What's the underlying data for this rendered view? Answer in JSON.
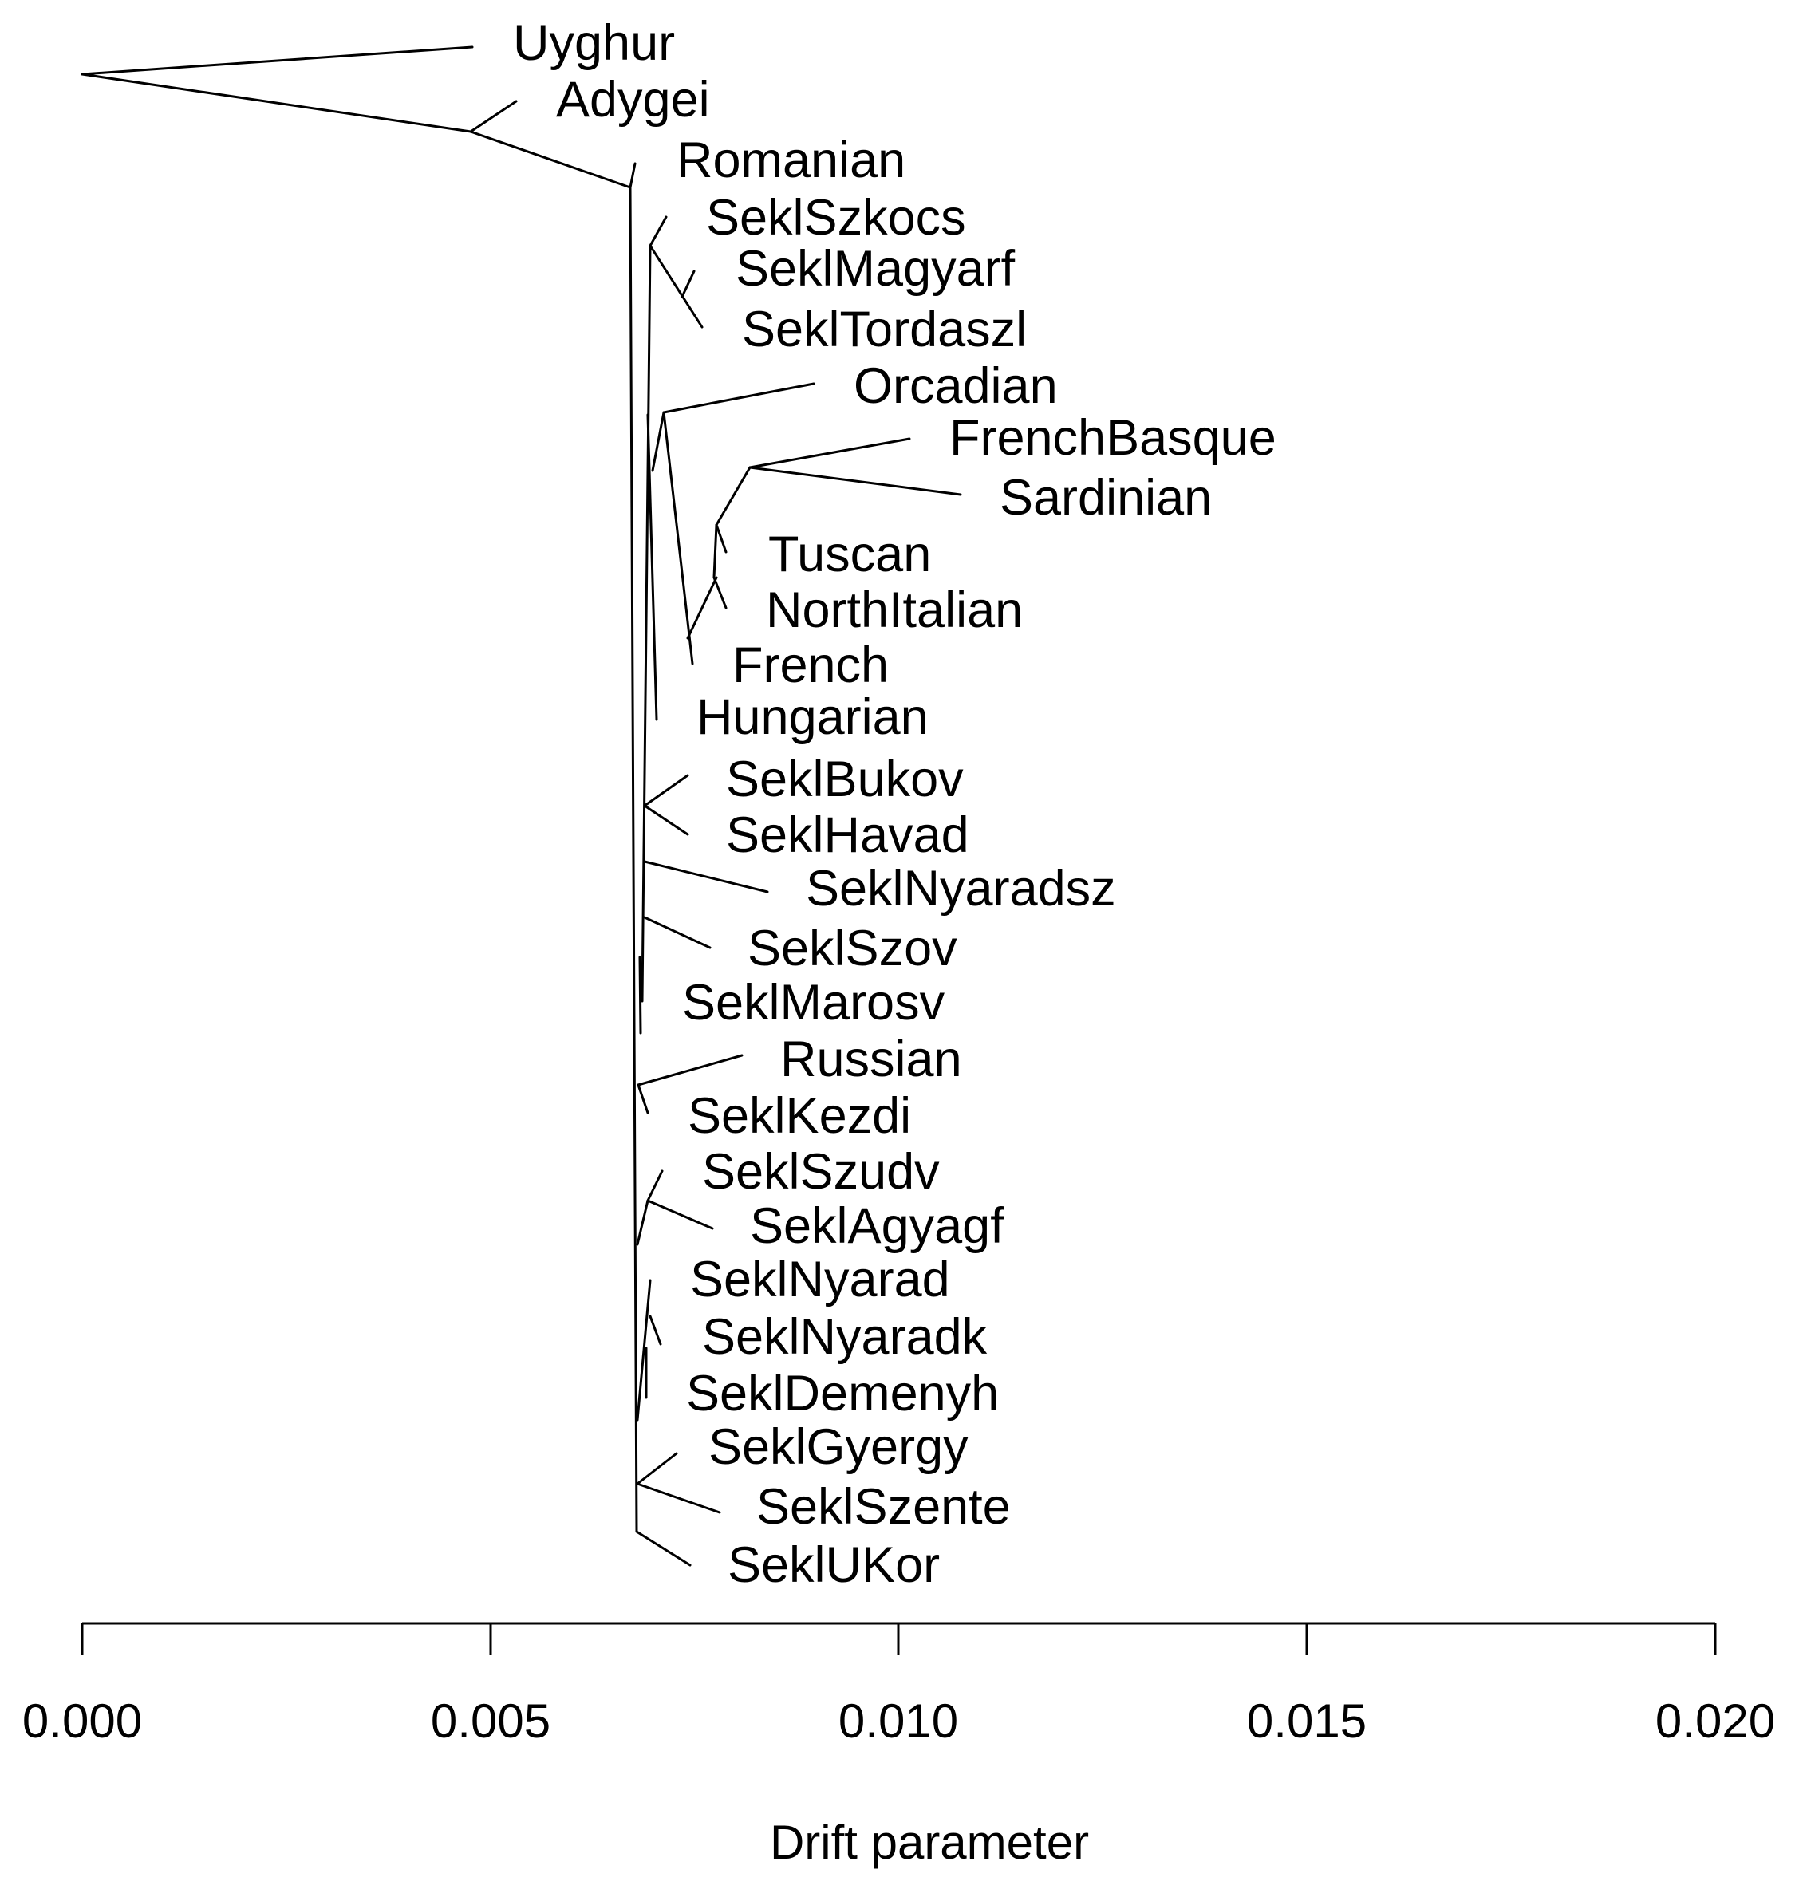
{
  "tree": {
    "leaves": [
      {
        "name": "Uyghur"
      },
      {
        "name": "Adygei"
      },
      {
        "name": "Romanian"
      },
      {
        "name": "SeklSzkocs"
      },
      {
        "name": "SeklMagyarf"
      },
      {
        "name": "SeklTordaszl"
      },
      {
        "name": "Orcadian"
      },
      {
        "name": "FrenchBasque"
      },
      {
        "name": "Sardinian"
      },
      {
        "name": "Tuscan"
      },
      {
        "name": "NorthItalian"
      },
      {
        "name": "French"
      },
      {
        "name": "Hungarian"
      },
      {
        "name": "SeklBukov"
      },
      {
        "name": "SeklHavad"
      },
      {
        "name": "SeklNyaradsz"
      },
      {
        "name": "SeklSzov"
      },
      {
        "name": "SeklMarosv"
      },
      {
        "name": "Russian"
      },
      {
        "name": "SeklKezdi"
      },
      {
        "name": "SeklSzudv"
      },
      {
        "name": "SeklAgyagf"
      },
      {
        "name": "SeklNyarad"
      },
      {
        "name": "SeklNyaradk"
      },
      {
        "name": "SeklDemenyh"
      },
      {
        "name": "SeklGyergy"
      },
      {
        "name": "SeklSzente"
      },
      {
        "name": "SeklUKor"
      }
    ]
  },
  "axis": {
    "label": "Drift parameter",
    "range": [
      0,
      0.02
    ],
    "ticks": [
      {
        "value": 0.0,
        "label": "0.000"
      },
      {
        "value": 0.005,
        "label": "0.005"
      },
      {
        "value": 0.01,
        "label": "0.010"
      },
      {
        "value": 0.015,
        "label": "0.015"
      },
      {
        "value": 0.02,
        "label": "0.020"
      }
    ]
  },
  "colors": {
    "line": "#000000",
    "text": "#000000",
    "background": "#ffffff"
  }
}
